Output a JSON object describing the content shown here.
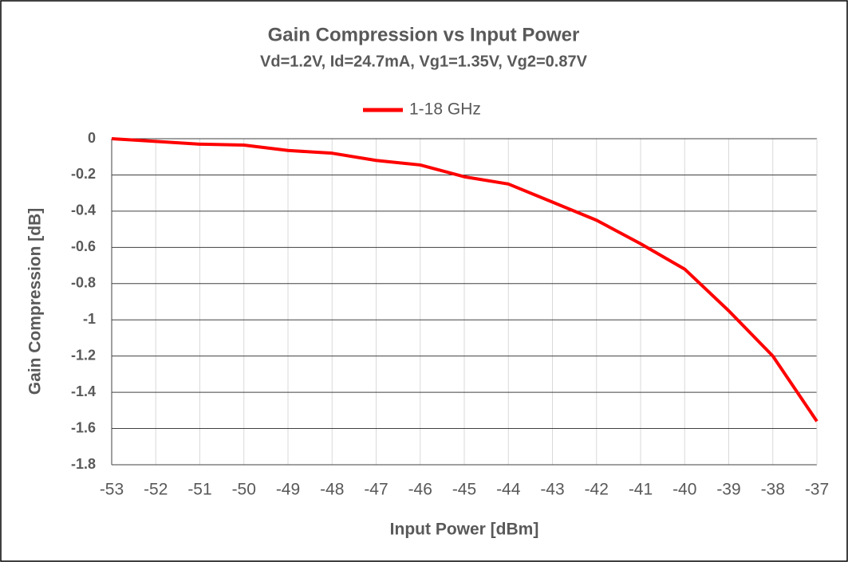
{
  "chart_data": {
    "type": "line",
    "title": "Gain Compression vs Input Power",
    "subtitle": "Vd=1.2V, Id=24.7mA, Vg1=1.35V, Vg2=0.87V",
    "x_label": "Input Power [dBm]",
    "y_label": "Gain Compression [dB]",
    "x": [
      -53,
      -52,
      -51,
      -50,
      -49,
      -48,
      -47,
      -46,
      -45,
      -44,
      -43,
      -42,
      -41,
      -40,
      -39,
      -38,
      -37
    ],
    "series": [
      {
        "name": "1-18 GHz",
        "color": "#ff0000",
        "values": [
          0,
          -0.015,
          -0.03,
          -0.035,
          -0.065,
          -0.08,
          -0.12,
          -0.145,
          -0.21,
          -0.25,
          -0.35,
          -0.45,
          -0.58,
          -0.72,
          -0.95,
          -1.2,
          -1.56
        ]
      }
    ],
    "xlim": [
      -53,
      -37
    ],
    "xticks": [
      -53,
      -52,
      -51,
      -50,
      -49,
      -48,
      -47,
      -46,
      -45,
      -44,
      -43,
      -42,
      -41,
      -40,
      -39,
      -38,
      -37
    ],
    "ylim": [
      -1.8,
      0
    ],
    "yticks": [
      0,
      -0.2,
      -0.4,
      -0.6,
      -0.8,
      -1,
      -1.2,
      -1.4,
      -1.6,
      -1.8
    ],
    "grid": true,
    "legend": "top"
  }
}
